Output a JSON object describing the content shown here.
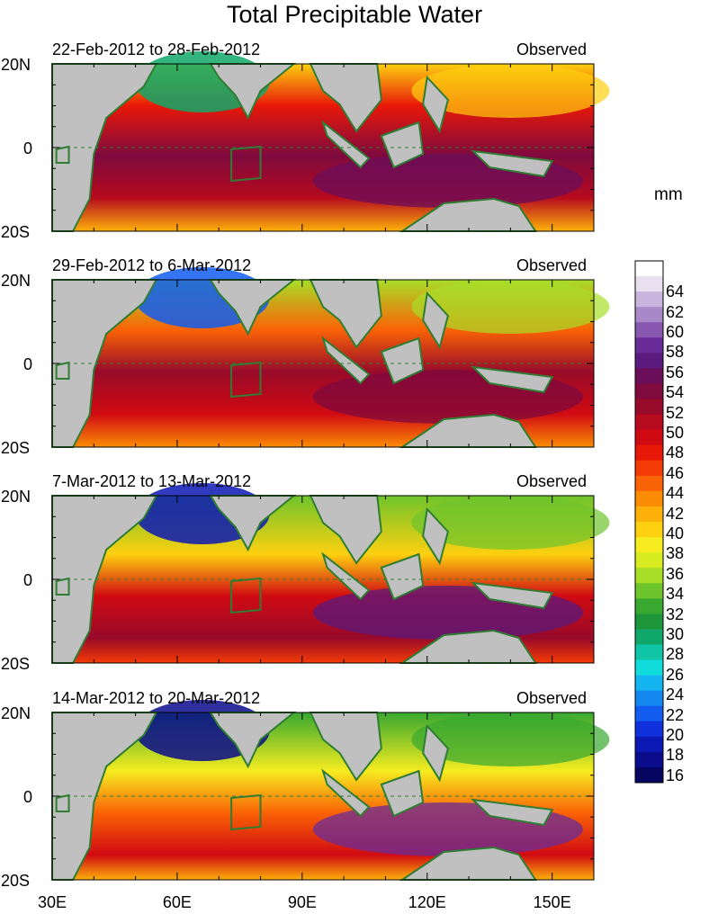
{
  "title": "Total Precipitable Water",
  "unit": "mm",
  "panels": [
    {
      "date_range": "22-Feb-2012 to 28-Feb-2012",
      "source": "Observed"
    },
    {
      "date_range": "29-Feb-2012 to 6-Mar-2012",
      "source": "Observed"
    },
    {
      "date_range": "7-Mar-2012 to 13-Mar-2012",
      "source": "Observed"
    },
    {
      "date_range": "14-Mar-2012 to 20-Mar-2012",
      "source": "Observed"
    }
  ],
  "lat_labels": [
    "20N",
    "0",
    "20S"
  ],
  "lon_labels": [
    "30E",
    "60E",
    "90E",
    "120E",
    "150E"
  ],
  "colorbar": {
    "labels": [
      "64",
      "62",
      "60",
      "58",
      "56",
      "54",
      "52",
      "50",
      "48",
      "46",
      "44",
      "42",
      "40",
      "38",
      "36",
      "34",
      "32",
      "30",
      "28",
      "26",
      "24",
      "22",
      "20",
      "18",
      "16"
    ],
    "colors": [
      "#ffffff",
      "#e8e0f0",
      "#c8b4dc",
      "#a888c8",
      "#8858b0",
      "#6a2c98",
      "#5a1a7e",
      "#6a0e5a",
      "#7e0a3e",
      "#980a2a",
      "#b60a1e",
      "#d00a12",
      "#e81808",
      "#f43a06",
      "#fa6206",
      "#fc8c06",
      "#fdb00a",
      "#fdd010",
      "#f6ec20",
      "#d6ec20",
      "#a8de28",
      "#6ec42c",
      "#38a830",
      "#1c9638",
      "#10a86a",
      "#10c4a6",
      "#10dcdc",
      "#14b4f0",
      "#1488f0",
      "#125cf0",
      "#1030dc",
      "#0c18b4",
      "#0a0c8c",
      "#060660"
    ]
  }
}
